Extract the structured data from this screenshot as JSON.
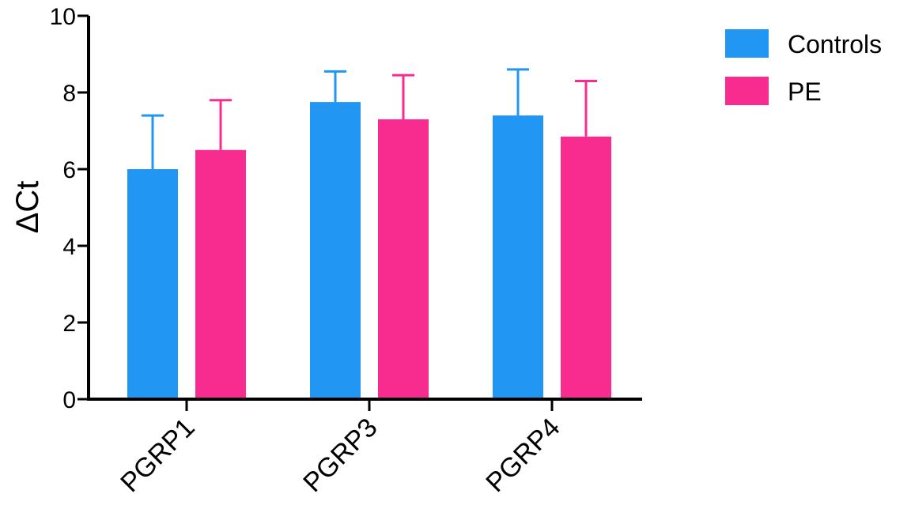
{
  "chart_data": {
    "type": "bar",
    "categories": [
      "PGRP1",
      "PGRP3",
      "PGRP4"
    ],
    "series": [
      {
        "name": "Controls",
        "color": "#2196F3",
        "values": [
          6.0,
          7.75,
          7.4
        ],
        "error_plus": [
          1.4,
          0.8,
          1.2
        ]
      },
      {
        "name": "PE",
        "color": "#F72C8E",
        "values": [
          6.5,
          7.3,
          6.85
        ],
        "error_plus": [
          1.3,
          1.15,
          1.45
        ]
      }
    ],
    "title": "",
    "xlabel": "",
    "ylabel": "ΔCt",
    "ylim": [
      0,
      10
    ],
    "yticks": [
      0,
      2,
      4,
      6,
      8,
      10
    ],
    "grid": false,
    "legend": "top-right"
  }
}
